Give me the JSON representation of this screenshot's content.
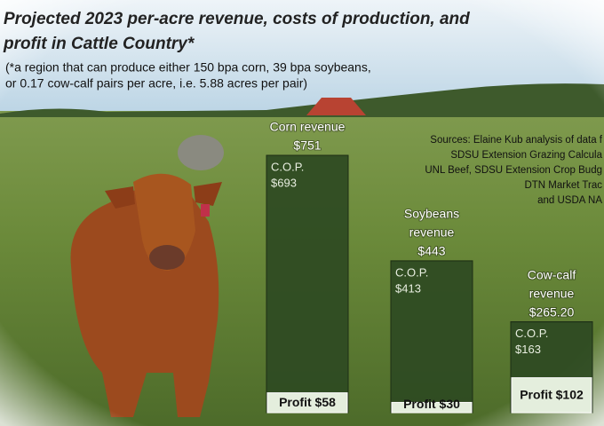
{
  "chart_data": {
    "type": "bar",
    "title": [
      "Projected 2023 per-acre revenue, costs of production, and",
      "profit in Cattle Country*"
    ],
    "subtitle": [
      "(*a region that can produce either 150 bpa corn, 39 bpa soybeans,",
      "or 0.17 cow-calf pairs per acre, i.e. 5.88 acres per pair)"
    ],
    "sources": [
      "Sources: Elaine Kub analysis of data f",
      "SDSU Extension Grazing Calcula",
      "UNL Beef, SDSU Extension Crop Budg",
      "DTN Market Trac",
      "and USDA NA"
    ],
    "categories": [
      [
        "Corn revenue"
      ],
      [
        "Soybeans",
        "revenue"
      ],
      [
        "Cow-calf",
        "revenue"
      ]
    ],
    "values": [
      751,
      443,
      265.2
    ],
    "value_labels": [
      "$751",
      "$443",
      "$265.20"
    ],
    "color": "#2e4a22",
    "series": [
      {
        "name": "C.O.P.",
        "color": "#2e4a22",
        "values": [
          693,
          413,
          163
        ],
        "value_labels": [
          "$693",
          "$413",
          "$163"
        ]
      },
      {
        "name": "Profit",
        "color": "#e4eedd",
        "values": [
          58,
          30,
          102
        ],
        "value_labels": [
          "$58",
          "$30",
          "$102"
        ]
      }
    ]
  }
}
